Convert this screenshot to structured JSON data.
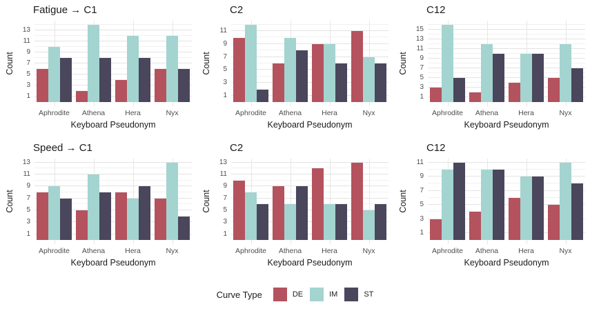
{
  "figure": {
    "background": "#ffffff",
    "grid_major_color": "#e3e3e3",
    "grid_minor_color": "#f1f1f1",
    "layout": "2x3 facet grid, legend at bottom, grid on"
  },
  "series_colors": {
    "DE": "#b4525e",
    "IM": "#a3d4d0",
    "ST": "#4a465c"
  },
  "legend": {
    "title": "Curve Type",
    "entries": [
      {
        "label": "DE",
        "color": "#b4525e"
      },
      {
        "label": "IM",
        "color": "#a3d4d0"
      },
      {
        "label": "ST",
        "color": "#4a465c"
      }
    ]
  },
  "chart_data": [
    {
      "type": "bar",
      "id": "fatigue-c1",
      "title": "Fatigue → C1",
      "categories": [
        "Aphrodite",
        "Athena",
        "Hera",
        "Nyx"
      ],
      "series": [
        {
          "name": "DE",
          "values": [
            6,
            2,
            4,
            6
          ]
        },
        {
          "name": "IM",
          "values": [
            10,
            14,
            12,
            12
          ]
        },
        {
          "name": "ST",
          "values": [
            8,
            8,
            8,
            6
          ]
        }
      ],
      "xlabel": "Keyboard Pseudonym",
      "ylabel": "Count",
      "yticks": [
        1,
        3,
        5,
        7,
        9,
        11,
        13
      ],
      "ylim": [
        0,
        14
      ],
      "grid": true
    },
    {
      "type": "bar",
      "id": "fatigue-c2",
      "title": "C2",
      "categories": [
        "Aphrodite",
        "Athena",
        "Hera",
        "Nyx"
      ],
      "series": [
        {
          "name": "DE",
          "values": [
            10,
            6,
            9,
            11
          ]
        },
        {
          "name": "IM",
          "values": [
            12,
            10,
            9,
            7
          ]
        },
        {
          "name": "ST",
          "values": [
            2,
            8,
            6,
            6
          ]
        }
      ],
      "xlabel": "Keyboard Pseudonym",
      "ylabel": "Count",
      "yticks": [
        1,
        3,
        5,
        7,
        9,
        11
      ],
      "ylim": [
        0,
        12
      ],
      "grid": true
    },
    {
      "type": "bar",
      "id": "fatigue-c12",
      "title": "C12",
      "categories": [
        "Aphrodite",
        "Athena",
        "Hera",
        "Nyx"
      ],
      "series": [
        {
          "name": "DE",
          "values": [
            3,
            2,
            4,
            5
          ]
        },
        {
          "name": "IM",
          "values": [
            16,
            12,
            10,
            12
          ]
        },
        {
          "name": "ST",
          "values": [
            5,
            10,
            10,
            7
          ]
        }
      ],
      "xlabel": "Keyboard Pseudonym",
      "ylabel": "Count",
      "yticks": [
        1,
        3,
        5,
        7,
        9,
        11,
        13,
        15
      ],
      "ylim": [
        0,
        16
      ],
      "grid": true
    },
    {
      "type": "bar",
      "id": "speed-c1",
      "title": "Speed → C1",
      "categories": [
        "Aphrodite",
        "Athena",
        "Hera",
        "Nyx"
      ],
      "series": [
        {
          "name": "DE",
          "values": [
            8,
            5,
            8,
            7
          ]
        },
        {
          "name": "IM",
          "values": [
            9,
            11,
            7,
            13
          ]
        },
        {
          "name": "ST",
          "values": [
            7,
            8,
            9,
            4
          ]
        }
      ],
      "xlabel": "Keyboard Pseudonym",
      "ylabel": "Count",
      "yticks": [
        1,
        3,
        5,
        7,
        9,
        11,
        13
      ],
      "ylim": [
        0,
        13
      ],
      "grid": true
    },
    {
      "type": "bar",
      "id": "speed-c2",
      "title": "C2",
      "categories": [
        "Aphrodite",
        "Athena",
        "Hera",
        "Nyx"
      ],
      "series": [
        {
          "name": "DE",
          "values": [
            10,
            9,
            12,
            13
          ]
        },
        {
          "name": "IM",
          "values": [
            8,
            6,
            6,
            5
          ]
        },
        {
          "name": "ST",
          "values": [
            6,
            9,
            6,
            6
          ]
        }
      ],
      "xlabel": "Keyboard Pseudonym",
      "ylabel": "Count",
      "yticks": [
        1,
        3,
        5,
        7,
        9,
        11,
        13
      ],
      "ylim": [
        0,
        13
      ],
      "grid": true
    },
    {
      "type": "bar",
      "id": "speed-c12",
      "title": "C12",
      "categories": [
        "Aphrodite",
        "Athena",
        "Hera",
        "Nyx"
      ],
      "series": [
        {
          "name": "DE",
          "values": [
            3,
            4,
            6,
            5
          ]
        },
        {
          "name": "IM",
          "values": [
            10,
            10,
            9,
            11
          ]
        },
        {
          "name": "ST",
          "values": [
            11,
            10,
            9,
            8
          ]
        }
      ],
      "xlabel": "Keyboard Pseudonym",
      "ylabel": "Count",
      "yticks": [
        1,
        3,
        5,
        7,
        9,
        11
      ],
      "ylim": [
        0,
        11
      ],
      "grid": true
    }
  ]
}
